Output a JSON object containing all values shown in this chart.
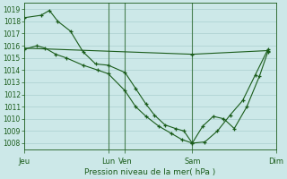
{
  "xlabel": "Pression niveau de la mer( hPa )",
  "background_color": "#cce8e8",
  "grid_color": "#aacfcf",
  "line_color": "#1a5c1a",
  "ylim": [
    1007.5,
    1019.5
  ],
  "yticks": [
    1008,
    1009,
    1010,
    1011,
    1012,
    1013,
    1014,
    1015,
    1016,
    1017,
    1018,
    1019
  ],
  "xlim": [
    0,
    12
  ],
  "day_ticks_x": [
    0,
    4.0,
    4.8,
    8.0,
    12.0
  ],
  "day_labels": [
    "Jeu",
    "Lun",
    "Ven",
    "Sam",
    "Dim"
  ],
  "vlines_x": [
    4.0,
    4.8,
    8.0
  ],
  "series1_x": [
    0,
    0.8,
    1.2,
    1.6,
    2.2,
    2.8,
    3.4,
    4.0,
    4.8,
    5.3,
    5.8,
    6.2,
    6.7,
    7.2,
    7.6,
    8.0,
    8.5,
    9.0,
    9.5,
    10.0,
    10.6,
    11.2,
    11.6
  ],
  "series1_y": [
    1018.3,
    1018.5,
    1018.9,
    1018.0,
    1017.2,
    1015.5,
    1014.5,
    1014.4,
    1013.8,
    1012.5,
    1011.2,
    1010.3,
    1009.5,
    1009.2,
    1009.0,
    1008.0,
    1009.4,
    1010.2,
    1010.0,
    1009.2,
    1011.0,
    1013.5,
    1015.5
  ],
  "series2_x": [
    0,
    0.6,
    1.0,
    1.5,
    2.0,
    2.8,
    3.5,
    4.0,
    4.8,
    5.3,
    5.8,
    6.4,
    7.0,
    7.5,
    8.0,
    8.6,
    9.2,
    9.8,
    10.4,
    11.0,
    11.6
  ],
  "series2_y": [
    1015.7,
    1016.0,
    1015.8,
    1015.3,
    1015.0,
    1014.4,
    1014.0,
    1013.7,
    1012.3,
    1011.0,
    1010.2,
    1009.4,
    1008.8,
    1008.3,
    1008.0,
    1008.1,
    1009.0,
    1010.3,
    1011.5,
    1013.6,
    1015.7
  ],
  "series3_x": [
    0,
    8.0,
    11.6
  ],
  "series3_y": [
    1015.8,
    1015.3,
    1015.6
  ]
}
